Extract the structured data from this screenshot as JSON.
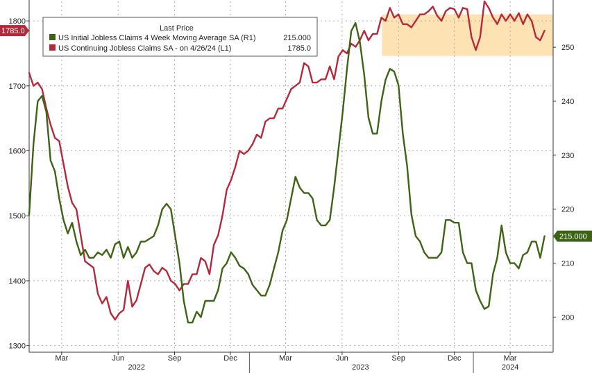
{
  "chart_data": {
    "type": "line",
    "legend": {
      "title": "Last Price",
      "placement": "top-left",
      "entries": [
        {
          "label": "US Initial Jobless Claims 4 Week Moving Average SA  (R1)",
          "value": "215.000",
          "color": "#3d6314"
        },
        {
          "label": "US Continuing Jobless Claims SA -  on 4/26/24  (L1)",
          "value": "1785.0",
          "color": "#b5283a"
        }
      ]
    },
    "x_range": [
      "2022-01-07",
      "2024-05-10"
    ],
    "x_ticks": [
      {
        "date": "2022-03-01",
        "label": "Mar"
      },
      {
        "date": "2022-06-01",
        "label": "Jun"
      },
      {
        "date": "2022-09-01",
        "label": "Sep"
      },
      {
        "date": "2022-12-01",
        "label": "Dec"
      },
      {
        "date": "2023-03-01",
        "label": "Mar"
      },
      {
        "date": "2023-06-01",
        "label": "Jun"
      },
      {
        "date": "2023-09-01",
        "label": "Sep"
      },
      {
        "date": "2023-12-01",
        "label": "Dec"
      },
      {
        "date": "2024-03-01",
        "label": "Mar"
      }
    ],
    "year_labels": [
      {
        "date": "2022-07-01",
        "label": "2022"
      },
      {
        "date": "2023-07-01",
        "label": "2023"
      },
      {
        "date": "2024-03-01",
        "label": "2024"
      }
    ],
    "year_dividers": [
      "2023-01-01",
      "2024-01-01"
    ],
    "y_left": {
      "range": [
        1290,
        1830
      ],
      "ticks": [
        1300,
        1400,
        1500,
        1600,
        1700,
        1800
      ]
    },
    "y_right": {
      "range": [
        193.5,
        258.5
      ],
      "ticks": [
        200,
        210,
        220,
        230,
        240,
        250
      ]
    },
    "grid": true,
    "highlight_box": {
      "x": [
        "2023-08-05",
        "2024-05-10"
      ],
      "y_left": [
        1746,
        1810
      ],
      "color": "#fde2b3"
    },
    "current_tags": [
      {
        "axis": "left",
        "value": 1785,
        "text": "1785.0",
        "color": "#b5283a"
      },
      {
        "axis": "right",
        "value": 215,
        "text": "215.000",
        "color": "#3d6314"
      }
    ],
    "series": [
      {
        "name": "US Continuing Jobless Claims SA -  on 4/26/24",
        "axis": "left",
        "color": "#b5283a",
        "points": [
          [
            "2022-01-07",
            1720
          ],
          [
            "2022-01-14",
            1700
          ],
          [
            "2022-01-21",
            1705
          ],
          [
            "2022-01-28",
            1695
          ],
          [
            "2022-02-04",
            1665
          ],
          [
            "2022-02-11",
            1640
          ],
          [
            "2022-02-18",
            1620
          ],
          [
            "2022-02-25",
            1615
          ],
          [
            "2022-03-04",
            1580
          ],
          [
            "2022-03-11",
            1545
          ],
          [
            "2022-03-18",
            1520
          ],
          [
            "2022-03-25",
            1510
          ],
          [
            "2022-04-01",
            1470
          ],
          [
            "2022-04-08",
            1430
          ],
          [
            "2022-04-15",
            1425
          ],
          [
            "2022-04-22",
            1420
          ],
          [
            "2022-04-29",
            1380
          ],
          [
            "2022-05-06",
            1365
          ],
          [
            "2022-05-13",
            1375
          ],
          [
            "2022-05-20",
            1350
          ],
          [
            "2022-05-27",
            1340
          ],
          [
            "2022-06-03",
            1350
          ],
          [
            "2022-06-10",
            1355
          ],
          [
            "2022-06-17",
            1400
          ],
          [
            "2022-06-24",
            1360
          ],
          [
            "2022-07-01",
            1370
          ],
          [
            "2022-07-08",
            1395
          ],
          [
            "2022-07-15",
            1420
          ],
          [
            "2022-07-22",
            1425
          ],
          [
            "2022-07-29",
            1415
          ],
          [
            "2022-08-05",
            1410
          ],
          [
            "2022-08-12",
            1420
          ],
          [
            "2022-08-19",
            1415
          ],
          [
            "2022-08-26",
            1400
          ],
          [
            "2022-09-02",
            1395
          ],
          [
            "2022-09-09",
            1385
          ],
          [
            "2022-09-16",
            1395
          ],
          [
            "2022-09-23",
            1395
          ],
          [
            "2022-09-30",
            1410
          ],
          [
            "2022-10-07",
            1410
          ],
          [
            "2022-10-14",
            1435
          ],
          [
            "2022-10-21",
            1430
          ],
          [
            "2022-10-28",
            1410
          ],
          [
            "2022-11-04",
            1455
          ],
          [
            "2022-11-11",
            1470
          ],
          [
            "2022-11-18",
            1500
          ],
          [
            "2022-11-25",
            1540
          ],
          [
            "2022-12-02",
            1555
          ],
          [
            "2022-12-09",
            1575
          ],
          [
            "2022-12-16",
            1600
          ],
          [
            "2022-12-23",
            1595
          ],
          [
            "2022-12-30",
            1600
          ],
          [
            "2023-01-06",
            1610
          ],
          [
            "2023-01-13",
            1625
          ],
          [
            "2023-01-20",
            1620
          ],
          [
            "2023-01-27",
            1645
          ],
          [
            "2023-02-03",
            1650
          ],
          [
            "2023-02-10",
            1650
          ],
          [
            "2023-02-17",
            1665
          ],
          [
            "2023-02-24",
            1665
          ],
          [
            "2023-03-03",
            1680
          ],
          [
            "2023-03-10",
            1695
          ],
          [
            "2023-03-17",
            1700
          ],
          [
            "2023-03-24",
            1705
          ],
          [
            "2023-03-31",
            1735
          ],
          [
            "2023-04-07",
            1730
          ],
          [
            "2023-04-14",
            1705
          ],
          [
            "2023-04-21",
            1705
          ],
          [
            "2023-04-28",
            1710
          ],
          [
            "2023-05-05",
            1710
          ],
          [
            "2023-05-12",
            1730
          ],
          [
            "2023-05-19",
            1710
          ],
          [
            "2023-05-26",
            1745
          ],
          [
            "2023-06-02",
            1755
          ],
          [
            "2023-06-09",
            1750
          ],
          [
            "2023-06-16",
            1765
          ],
          [
            "2023-06-23",
            1760
          ],
          [
            "2023-06-30",
            1770
          ],
          [
            "2023-07-07",
            1785
          ],
          [
            "2023-07-14",
            1770
          ],
          [
            "2023-07-21",
            1780
          ],
          [
            "2023-07-28",
            1780
          ],
          [
            "2023-08-04",
            1805
          ],
          [
            "2023-08-11",
            1800
          ],
          [
            "2023-08-18",
            1820
          ],
          [
            "2023-08-25",
            1805
          ],
          [
            "2023-09-01",
            1810
          ],
          [
            "2023-09-08",
            1795
          ],
          [
            "2023-09-15",
            1795
          ],
          [
            "2023-09-22",
            1790
          ],
          [
            "2023-09-29",
            1800
          ],
          [
            "2023-10-06",
            1810
          ],
          [
            "2023-10-13",
            1810
          ],
          [
            "2023-10-20",
            1815
          ],
          [
            "2023-10-27",
            1822
          ],
          [
            "2023-11-03",
            1808
          ],
          [
            "2023-11-10",
            1800
          ],
          [
            "2023-11-17",
            1815
          ],
          [
            "2023-11-24",
            1820
          ],
          [
            "2023-12-01",
            1818
          ],
          [
            "2023-12-08",
            1805
          ],
          [
            "2023-12-15",
            1820
          ],
          [
            "2023-12-22",
            1818
          ],
          [
            "2023-12-29",
            1775
          ],
          [
            "2024-01-05",
            1755
          ],
          [
            "2024-01-12",
            1775
          ],
          [
            "2024-01-19",
            1830
          ],
          [
            "2024-01-26",
            1820
          ],
          [
            "2024-02-02",
            1805
          ],
          [
            "2024-02-09",
            1795
          ],
          [
            "2024-02-16",
            1810
          ],
          [
            "2024-02-23",
            1800
          ],
          [
            "2024-03-01",
            1810
          ],
          [
            "2024-03-08",
            1800
          ],
          [
            "2024-03-15",
            1812
          ],
          [
            "2024-03-22",
            1795
          ],
          [
            "2024-03-29",
            1810
          ],
          [
            "2024-04-05",
            1800
          ],
          [
            "2024-04-12",
            1775
          ],
          [
            "2024-04-19",
            1770
          ],
          [
            "2024-04-26",
            1785
          ]
        ]
      },
      {
        "name": "US Initial Jobless Claims 4 Week Moving Average SA",
        "axis": "right",
        "color": "#3d6314",
        "points": [
          [
            "2022-01-07",
            219
          ],
          [
            "2022-01-14",
            232
          ],
          [
            "2022-01-21",
            240
          ],
          [
            "2022-01-28",
            241
          ],
          [
            "2022-02-04",
            238
          ],
          [
            "2022-02-11",
            229
          ],
          [
            "2022-02-18",
            227
          ],
          [
            "2022-02-25",
            222
          ],
          [
            "2022-03-04",
            218
          ],
          [
            "2022-03-11",
            215.5
          ],
          [
            "2022-03-18",
            217.5
          ],
          [
            "2022-03-25",
            214
          ],
          [
            "2022-04-01",
            211.5
          ],
          [
            "2022-04-08",
            212.5
          ],
          [
            "2022-04-15",
            211
          ],
          [
            "2022-04-22",
            211
          ],
          [
            "2022-04-29",
            212
          ],
          [
            "2022-05-06",
            211.5
          ],
          [
            "2022-05-13",
            212.5
          ],
          [
            "2022-05-20",
            211
          ],
          [
            "2022-05-27",
            213.5
          ],
          [
            "2022-06-03",
            214
          ],
          [
            "2022-06-10",
            211
          ],
          [
            "2022-06-17",
            213
          ],
          [
            "2022-06-24",
            211
          ],
          [
            "2022-07-01",
            212
          ],
          [
            "2022-07-08",
            214
          ],
          [
            "2022-07-15",
            214
          ],
          [
            "2022-07-22",
            214.5
          ],
          [
            "2022-07-29",
            215
          ],
          [
            "2022-08-05",
            217
          ],
          [
            "2022-08-12",
            220
          ],
          [
            "2022-08-19",
            221
          ],
          [
            "2022-08-26",
            220
          ],
          [
            "2022-09-02",
            215
          ],
          [
            "2022-09-09",
            210
          ],
          [
            "2022-09-16",
            203
          ],
          [
            "2022-09-23",
            199
          ],
          [
            "2022-09-30",
            199
          ],
          [
            "2022-10-07",
            201
          ],
          [
            "2022-10-14",
            200
          ],
          [
            "2022-10-21",
            203
          ],
          [
            "2022-10-28",
            203
          ],
          [
            "2022-11-04",
            203
          ],
          [
            "2022-11-11",
            205
          ],
          [
            "2022-11-18",
            209
          ],
          [
            "2022-11-25",
            210
          ],
          [
            "2022-12-02",
            212
          ],
          [
            "2022-12-09",
            211
          ],
          [
            "2022-12-16",
            209.5
          ],
          [
            "2022-12-23",
            209
          ],
          [
            "2022-12-30",
            208
          ],
          [
            "2023-01-06",
            206
          ],
          [
            "2023-01-13",
            205
          ],
          [
            "2023-01-20",
            204
          ],
          [
            "2023-01-27",
            204
          ],
          [
            "2023-02-03",
            206
          ],
          [
            "2023-02-10",
            209
          ],
          [
            "2023-02-17",
            212
          ],
          [
            "2023-02-24",
            216
          ],
          [
            "2023-03-03",
            218
          ],
          [
            "2023-03-10",
            222
          ],
          [
            "2023-03-17",
            226
          ],
          [
            "2023-03-24",
            224
          ],
          [
            "2023-03-31",
            223
          ],
          [
            "2023-04-07",
            223
          ],
          [
            "2023-04-14",
            222
          ],
          [
            "2023-04-21",
            218
          ],
          [
            "2023-04-28",
            217
          ],
          [
            "2023-05-05",
            217
          ],
          [
            "2023-05-12",
            218
          ],
          [
            "2023-05-19",
            224
          ],
          [
            "2023-05-26",
            231
          ],
          [
            "2023-06-02",
            238
          ],
          [
            "2023-06-09",
            246
          ],
          [
            "2023-06-16",
            253
          ],
          [
            "2023-06-23",
            254.5
          ],
          [
            "2023-06-30",
            251
          ],
          [
            "2023-07-07",
            245
          ],
          [
            "2023-07-14",
            237
          ],
          [
            "2023-07-21",
            234
          ],
          [
            "2023-07-28",
            234
          ],
          [
            "2023-08-04",
            240
          ],
          [
            "2023-08-11",
            244
          ],
          [
            "2023-08-18",
            246
          ],
          [
            "2023-08-25",
            245.5
          ],
          [
            "2023-09-01",
            243
          ],
          [
            "2023-09-08",
            234
          ],
          [
            "2023-09-15",
            228
          ],
          [
            "2023-09-22",
            219
          ],
          [
            "2023-09-29",
            215
          ],
          [
            "2023-10-06",
            214
          ],
          [
            "2023-10-13",
            212
          ],
          [
            "2023-10-20",
            211
          ],
          [
            "2023-10-27",
            211
          ],
          [
            "2023-11-03",
            211
          ],
          [
            "2023-11-10",
            212
          ],
          [
            "2023-11-17",
            218
          ],
          [
            "2023-11-24",
            218
          ],
          [
            "2023-12-01",
            217.5
          ],
          [
            "2023-12-08",
            217.5
          ],
          [
            "2023-12-15",
            212
          ],
          [
            "2023-12-22",
            210
          ],
          [
            "2023-12-29",
            210
          ],
          [
            "2024-01-05",
            205
          ],
          [
            "2024-01-12",
            203
          ],
          [
            "2024-01-19",
            201.5
          ],
          [
            "2024-01-26",
            202
          ],
          [
            "2024-02-02",
            208
          ],
          [
            "2024-02-09",
            211
          ],
          [
            "2024-02-16",
            217
          ],
          [
            "2024-02-23",
            212
          ],
          [
            "2024-03-01",
            210
          ],
          [
            "2024-03-08",
            210
          ],
          [
            "2024-03-15",
            209
          ],
          [
            "2024-03-22",
            211.5
          ],
          [
            "2024-03-29",
            212
          ],
          [
            "2024-04-05",
            214
          ],
          [
            "2024-04-12",
            214
          ],
          [
            "2024-04-19",
            211
          ],
          [
            "2024-04-26",
            215
          ]
        ]
      }
    ]
  }
}
